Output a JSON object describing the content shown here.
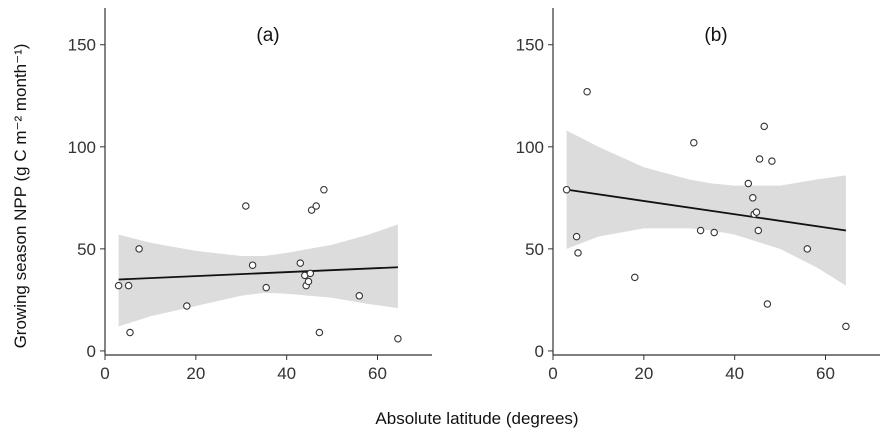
{
  "chart_data": [
    {
      "type": "scatter",
      "panel_label": "(a)",
      "xlim": [
        0,
        72
      ],
      "ylim": [
        -2,
        168
      ],
      "x_ticks": [
        0,
        20,
        40,
        60
      ],
      "y_ticks": [
        0,
        50,
        100,
        150
      ],
      "grid": false,
      "points": [
        {
          "x": 3,
          "y": 32
        },
        {
          "x": 5.2,
          "y": 32
        },
        {
          "x": 5.5,
          "y": 9
        },
        {
          "x": 7.5,
          "y": 50
        },
        {
          "x": 18,
          "y": 22
        },
        {
          "x": 31,
          "y": 71
        },
        {
          "x": 32.5,
          "y": 42
        },
        {
          "x": 35.5,
          "y": 31
        },
        {
          "x": 43,
          "y": 43
        },
        {
          "x": 44,
          "y": 37
        },
        {
          "x": 44.3,
          "y": 32
        },
        {
          "x": 44.8,
          "y": 34
        },
        {
          "x": 45.2,
          "y": 38
        },
        {
          "x": 45.5,
          "y": 69
        },
        {
          "x": 46.5,
          "y": 71
        },
        {
          "x": 47.2,
          "y": 9
        },
        {
          "x": 48.2,
          "y": 79
        },
        {
          "x": 56,
          "y": 27
        },
        {
          "x": 64.5,
          "y": 6
        }
      ],
      "fit": {
        "x": [
          3,
          64.5
        ],
        "y": [
          35,
          41
        ]
      },
      "confidence_band": {
        "x": [
          3,
          10,
          20,
          30,
          35,
          40,
          50,
          58,
          64.5
        ],
        "lower": [
          12,
          17,
          22,
          27,
          28.5,
          28,
          26,
          23,
          21
        ],
        "upper": [
          57,
          53,
          49,
          46.5,
          46.5,
          48,
          52,
          57,
          62
        ]
      }
    },
    {
      "type": "scatter",
      "panel_label": "(b)",
      "xlim": [
        0,
        72
      ],
      "ylim": [
        -2,
        168
      ],
      "x_ticks": [
        0,
        20,
        40,
        60
      ],
      "y_ticks": [
        0,
        50,
        100,
        150
      ],
      "grid": false,
      "points": [
        {
          "x": 3,
          "y": 79
        },
        {
          "x": 5.2,
          "y": 56
        },
        {
          "x": 5.5,
          "y": 48
        },
        {
          "x": 7.5,
          "y": 127
        },
        {
          "x": 18,
          "y": 36
        },
        {
          "x": 31,
          "y": 102
        },
        {
          "x": 32.5,
          "y": 59
        },
        {
          "x": 35.5,
          "y": 58
        },
        {
          "x": 43,
          "y": 82
        },
        {
          "x": 44,
          "y": 75
        },
        {
          "x": 44.3,
          "y": 67
        },
        {
          "x": 44.8,
          "y": 68
        },
        {
          "x": 45.2,
          "y": 59
        },
        {
          "x": 45.5,
          "y": 94
        },
        {
          "x": 46.5,
          "y": 110
        },
        {
          "x": 47.2,
          "y": 23
        },
        {
          "x": 48.2,
          "y": 93
        },
        {
          "x": 56,
          "y": 50
        },
        {
          "x": 64.5,
          "y": 12
        }
      ],
      "fit": {
        "x": [
          3,
          64.5
        ],
        "y": [
          79,
          59
        ]
      },
      "confidence_band": {
        "x": [
          3,
          10,
          20,
          30,
          35,
          40,
          50,
          58,
          64.5
        ],
        "lower": [
          50,
          56,
          60,
          60,
          59,
          57,
          50,
          41,
          32
        ],
        "upper": [
          108,
          100,
          90,
          84,
          82,
          81,
          81,
          84,
          86
        ]
      }
    }
  ],
  "y_axis_title": "Growing season NPP (g C m⁻² month⁻¹)",
  "x_axis_title": "Absolute latitude (degrees)"
}
